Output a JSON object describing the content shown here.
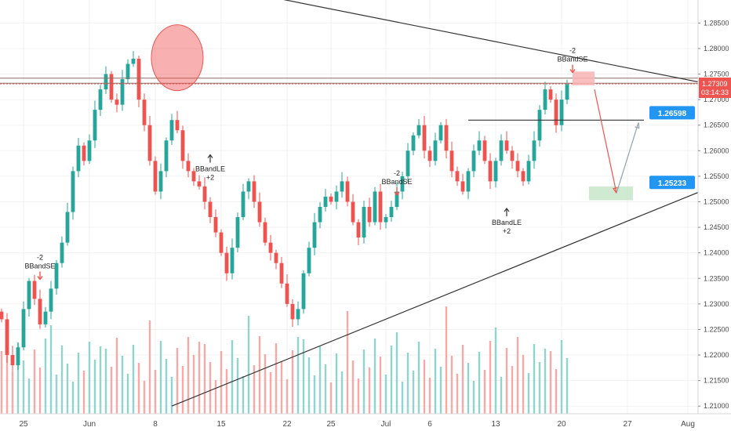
{
  "chart_data": {
    "type": "candlestick",
    "instrument_hint": "GBPUSD-style daily price chart",
    "colors": {
      "up": "#26a69a",
      "down": "#ef5350",
      "volume_up": "#8fd4cd",
      "volume_down": "#f7a9a7",
      "label_blue": "#2196f3",
      "last_price": "#ef5350",
      "grid": "#f2f2f2"
    },
    "y_axis": {
      "range": [
        1.2085,
        1.2895
      ],
      "ticks": [
        "1.21000",
        "1.21500",
        "1.22000",
        "1.22500",
        "1.23000",
        "1.23500",
        "1.24000",
        "1.24500",
        "1.25000",
        "1.25500",
        "1.26000",
        "1.26500",
        "1.27000",
        "1.27500",
        "1.28000",
        "1.28500"
      ]
    },
    "x_axis": {
      "tick_labels": [
        {
          "bar": 4,
          "label": "25"
        },
        {
          "bar": 16,
          "label": "Jun"
        },
        {
          "bar": 28,
          "label": "8"
        },
        {
          "bar": 40,
          "label": "15"
        },
        {
          "bar": 52,
          "label": "22"
        },
        {
          "bar": 60,
          "label": "25"
        },
        {
          "bar": 70,
          "label": "Jul"
        },
        {
          "bar": 78,
          "label": "6"
        },
        {
          "bar": 90,
          "label": "13"
        },
        {
          "bar": 102,
          "label": "20"
        },
        {
          "bar": 114,
          "label": "27"
        },
        {
          "bar": 125,
          "label": "Aug"
        }
      ]
    },
    "close_path": [
      1.227,
      1.22,
      1.218,
      1.2215,
      1.229,
      1.2345,
      1.231,
      1.226,
      1.2285,
      1.233,
      1.238,
      1.242,
      1.248,
      1.256,
      1.261,
      1.258,
      1.262,
      1.268,
      1.272,
      1.275,
      1.27,
      1.269,
      1.274,
      1.277,
      1.278,
      1.27,
      1.265,
      1.258,
      1.252,
      1.256,
      1.262,
      1.266,
      1.264,
      1.258,
      1.256,
      1.254,
      1.253,
      1.25,
      1.247,
      1.244,
      1.24,
      1.236,
      1.241,
      1.247,
      1.252,
      1.254,
      1.25,
      1.246,
      1.242,
      1.24,
      1.238,
      1.234,
      1.23,
      1.227,
      1.229,
      1.236,
      1.241,
      1.246,
      1.249,
      1.251,
      1.25,
      1.252,
      1.254,
      1.25,
      1.246,
      1.243,
      1.249,
      1.246,
      1.252,
      1.246,
      1.247,
      1.249,
      1.252,
      1.255,
      1.26,
      1.263,
      1.265,
      1.26,
      1.258,
      1.262,
      1.265,
      1.26,
      1.256,
      1.254,
      1.252,
      1.256,
      1.26,
      1.262,
      1.258,
      1.254,
      1.258,
      1.262,
      1.26,
      1.258,
      1.256,
      1.254,
      1.258,
      1.262,
      1.268,
      1.272,
      1.27,
      1.265,
      1.27,
      1.273
    ],
    "horizontal_lines": [
      {
        "name": "resistance-zone-top",
        "price": 1.2742,
        "color": "#8d6e63"
      },
      {
        "name": "resistance-zone-bottom",
        "price": 1.2732,
        "color": "#8d6e63"
      },
      {
        "name": "last-price-line",
        "price": 1.27309,
        "color": "#ef5350"
      },
      {
        "name": "support-line",
        "price": 1.26598,
        "color": "#333333"
      }
    ],
    "trendlines": [
      {
        "name": "upper-trendline",
        "from": {
          "bar": 33,
          "price": 1.2935
        },
        "to": {
          "bar": 130,
          "price": 1.2728
        }
      },
      {
        "name": "lower-trendline",
        "from": {
          "bar": 31,
          "price": 1.21
        },
        "to": {
          "bar": 130,
          "price": 1.2532
        }
      }
    ],
    "signals": [
      {
        "name": "signal-bbandse-1",
        "bar": 7,
        "price": 1.2345,
        "direction": "down",
        "line1": "-2",
        "line2": "BBandSE"
      },
      {
        "name": "signal-bbandle-1",
        "bar": 38,
        "price": 1.2595,
        "direction": "up",
        "line1": "BBandLE",
        "line2": "+2"
      },
      {
        "name": "signal-bbandse-2",
        "bar": 72,
        "price": 1.251,
        "direction": "down",
        "line1": "-2",
        "line2": "BBandSE"
      },
      {
        "name": "signal-bbandle-2",
        "bar": 92,
        "price": 1.249,
        "direction": "up",
        "line1": "BBandLE",
        "line2": "+2"
      },
      {
        "name": "signal-bbandse-3",
        "bar": 104,
        "price": 1.275,
        "direction": "down",
        "line1": "-2",
        "line2": "BBandSE"
      }
    ],
    "highlight_circle": {
      "bar": 32,
      "price": 1.2782
    },
    "zones": [
      {
        "name": "sell-zone",
        "from_bar": 104,
        "to_bar": 108,
        "price_low": 1.2728,
        "price_high": 1.2755,
        "color": "#f8b4b4"
      },
      {
        "name": "target-zone",
        "from_bar": 107,
        "to_bar": 115,
        "price_low": 1.2503,
        "price_high": 1.253,
        "color": "#c8e6c9"
      }
    ],
    "projection": [
      {
        "bar": 108,
        "price": 1.272
      },
      {
        "bar": 112,
        "price": 1.2517
      },
      {
        "bar": 116,
        "price": 1.2655
      }
    ],
    "price_labels": [
      {
        "name": "label-126598",
        "text": "1.26598",
        "price": 1.26598,
        "bar": 118
      },
      {
        "name": "label-125233",
        "text": "1.25233",
        "price": 1.25233,
        "bar": 118
      }
    ],
    "last_price": {
      "text": "1.27309",
      "countdown": "03:14:33",
      "price": 1.27309
    }
  }
}
